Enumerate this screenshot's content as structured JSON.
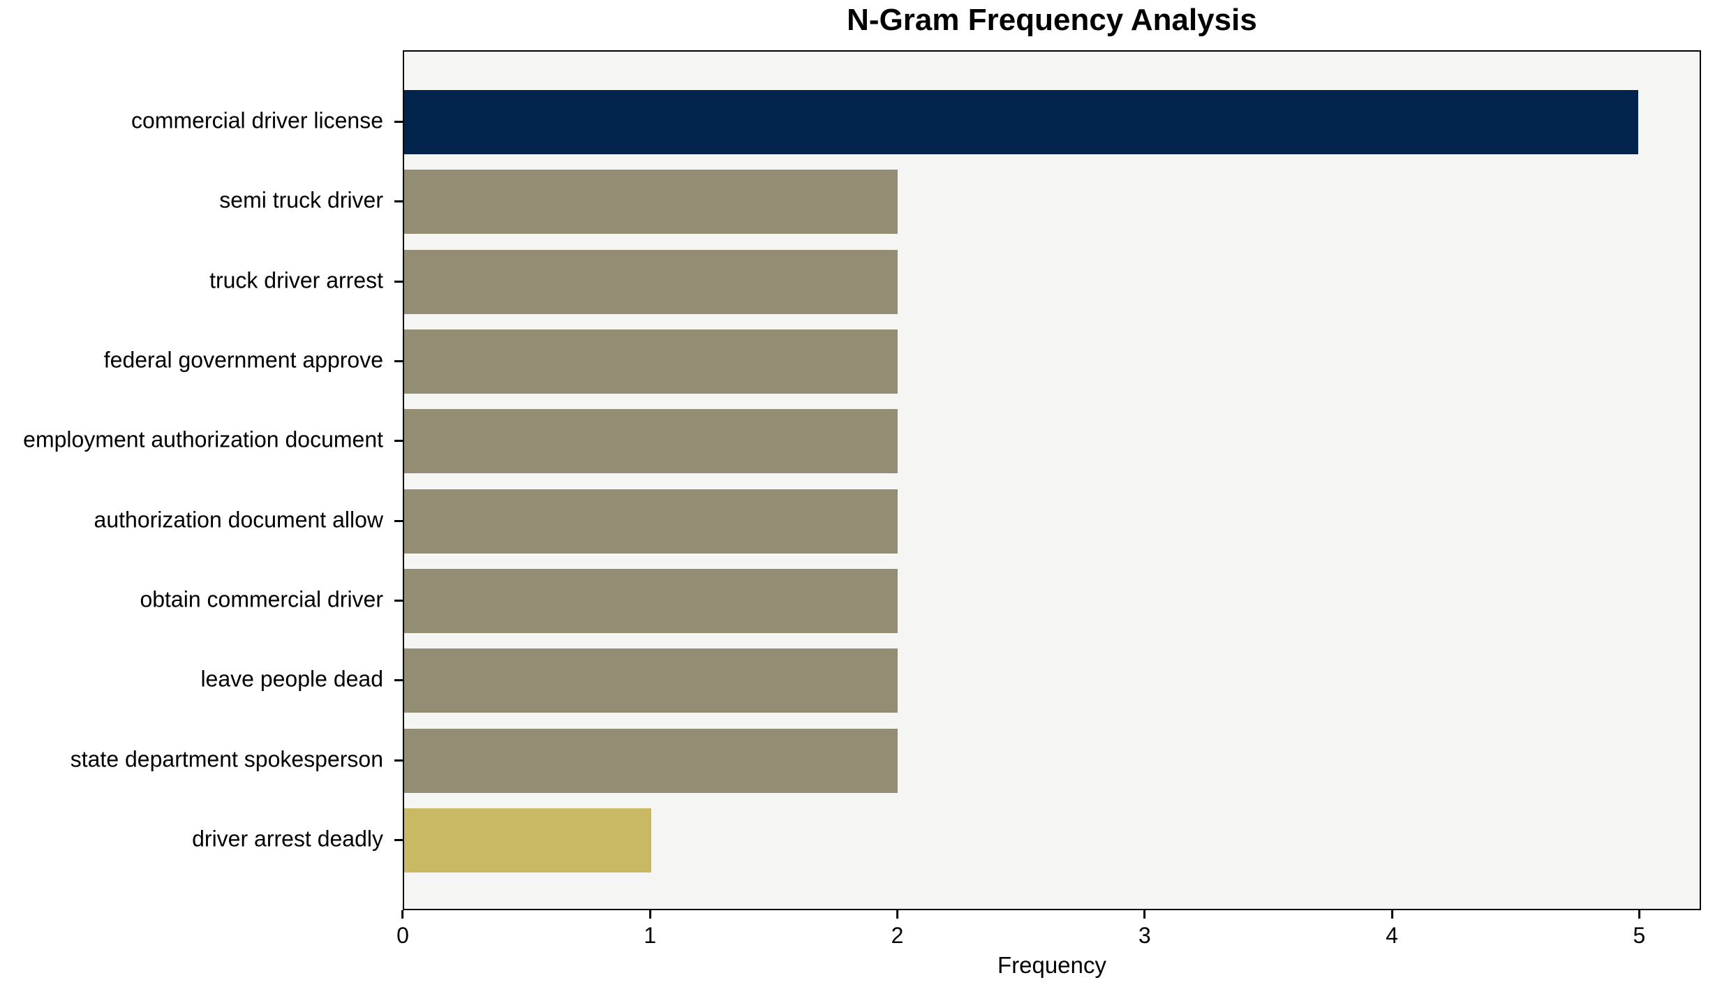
{
  "title": "N-Gram Frequency Analysis",
  "chart_data": {
    "type": "bar",
    "orientation": "horizontal",
    "title": "N-Gram Frequency Analysis",
    "categories": [
      "commercial driver license",
      "semi truck driver",
      "truck driver arrest",
      "federal government approve",
      "employment authorization document",
      "authorization document allow",
      "obtain commercial driver",
      "leave people dead",
      "state department spokesperson",
      "driver arrest deadly"
    ],
    "values": [
      5,
      2,
      2,
      2,
      2,
      2,
      2,
      2,
      2,
      1
    ],
    "bar_colors": [
      "#02234C",
      "#938D74",
      "#938D74",
      "#938D74",
      "#938D74",
      "#938D74",
      "#938D74",
      "#938D74",
      "#938D74",
      "#CAB964"
    ],
    "xlabel": "Frequency",
    "ylabel": "",
    "x_ticks": [
      0,
      1,
      2,
      3,
      4,
      5
    ],
    "xlim": [
      0,
      5.25
    ],
    "grid": false,
    "legend_position": "none",
    "plot_background": "#F5F5F4",
    "figure_background": "#FFFFFF",
    "axis_border_color": "#000000"
  }
}
